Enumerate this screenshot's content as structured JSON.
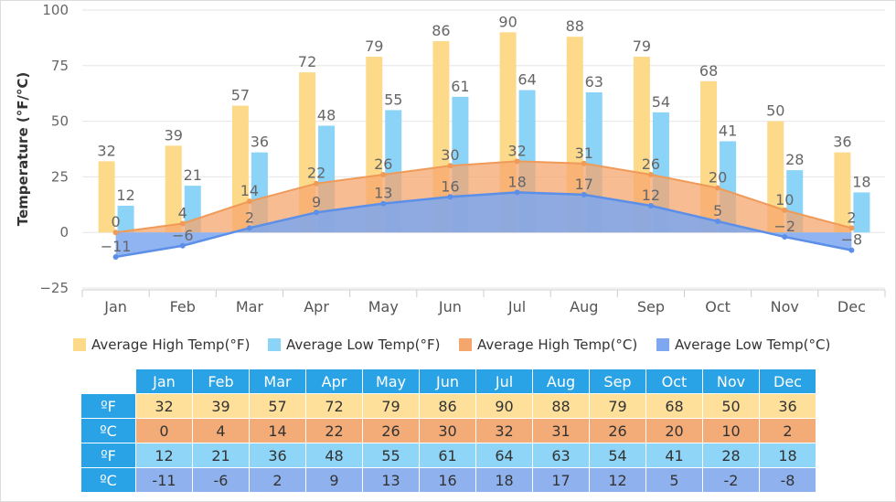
{
  "chart_data": {
    "type": "bar",
    "title": "",
    "ylabel": "Temperature (°F/°C)",
    "ylim": [
      -25,
      100
    ],
    "yticks": [
      -25,
      0,
      25,
      50,
      75,
      100
    ],
    "ytick_labels": [
      "−25",
      "0",
      "25",
      "50",
      "75",
      "100"
    ],
    "categories": [
      "Jan",
      "Feb",
      "Mar",
      "Apr",
      "May",
      "Jun",
      "Jul",
      "Aug",
      "Sep",
      "Oct",
      "Nov",
      "Dec"
    ],
    "legend_position": "bottom",
    "series": [
      {
        "name": "Average High Temp(°F)",
        "type": "bar",
        "color": "#fdd98a",
        "values": [
          32,
          39,
          57,
          72,
          79,
          86,
          90,
          88,
          79,
          68,
          50,
          36
        ]
      },
      {
        "name": "Average Low Temp(°F)",
        "type": "bar",
        "color": "#8bd3f7",
        "values": [
          12,
          21,
          36,
          48,
          55,
          61,
          64,
          63,
          54,
          41,
          28,
          18
        ]
      },
      {
        "name": "Average High Temp(°C)",
        "type": "area",
        "color": "#f5a66d",
        "values": [
          0,
          4,
          14,
          22,
          26,
          30,
          32,
          31,
          26,
          20,
          10,
          2
        ]
      },
      {
        "name": "Average Low Temp(°C)",
        "type": "area",
        "color": "#7da7ee",
        "values": [
          -11,
          -6,
          2,
          9,
          13,
          16,
          18,
          17,
          12,
          5,
          -2,
          -8
        ]
      }
    ],
    "table": {
      "row_labels": [
        "ºF",
        "ºC",
        "ºF",
        "ºC"
      ],
      "row_colors": [
        "#fee09b",
        "#f3ab78",
        "#8ed5f8",
        "#8fb2ee"
      ]
    }
  }
}
